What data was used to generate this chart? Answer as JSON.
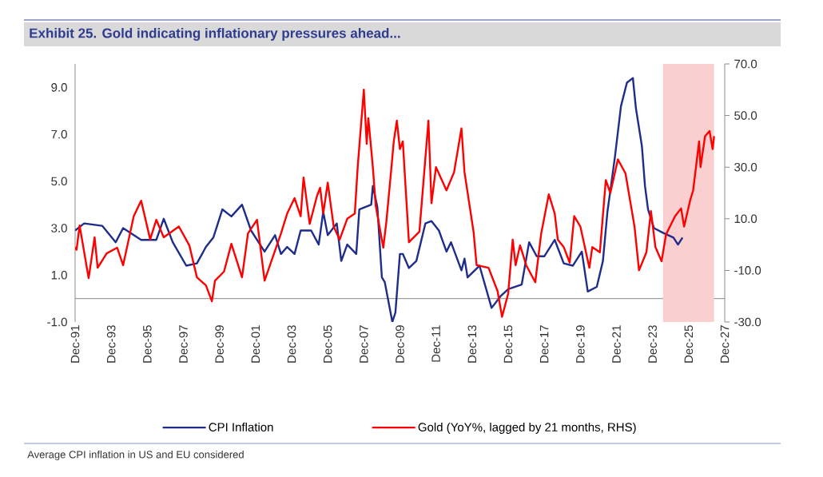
{
  "chart_data": {
    "type": "line",
    "title": "Exhibit 25. Gold indicating inflationary pressures ahead...",
    "annotations": [
      "Average CPI inflation in US and EU considered"
    ],
    "xlim": [
      "1991-12",
      "2027-12"
    ],
    "xticks": [
      {
        "value": "1991-12",
        "label": "Dec-91"
      },
      {
        "value": "1993-12",
        "label": "Dec-93"
      },
      {
        "value": "1995-12",
        "label": "Dec-95"
      },
      {
        "value": "1997-12",
        "label": "Dec-97"
      },
      {
        "value": "1999-12",
        "label": "Dec-99"
      },
      {
        "value": "2001-12",
        "label": "Dec-01"
      },
      {
        "value": "2003-12",
        "label": "Dec-03"
      },
      {
        "value": "2005-12",
        "label": "Dec-05"
      },
      {
        "value": "2007-12",
        "label": "Dec-07"
      },
      {
        "value": "2009-12",
        "label": "Dec-09"
      },
      {
        "value": "2011-12",
        "label": "Dec-11"
      },
      {
        "value": "2013-12",
        "label": "Dec-13"
      },
      {
        "value": "2015-12",
        "label": "Dec-15"
      },
      {
        "value": "2017-12",
        "label": "Dec-17"
      },
      {
        "value": "2019-12",
        "label": "Dec-19"
      },
      {
        "value": "2021-12",
        "label": "Dec-21"
      },
      {
        "value": "2023-12",
        "label": "Dec-23"
      },
      {
        "value": "2025-12",
        "label": "Dec-25"
      },
      {
        "value": "2027-12",
        "label": "Dec-27"
      }
    ],
    "ylim": [
      -1,
      10
    ],
    "yticks": [
      {
        "value": -1,
        "label": "-1.0"
      },
      {
        "value": 1,
        "label": "1.0"
      },
      {
        "value": 3,
        "label": "3.0"
      },
      {
        "value": 5,
        "label": "5.0"
      },
      {
        "value": 7,
        "label": "7.0"
      },
      {
        "value": 9,
        "label": "9.0"
      }
    ],
    "y2lim": [
      -30,
      70
    ],
    "y2ticks": [
      {
        "value": -30,
        "label": "-30.0"
      },
      {
        "value": -10,
        "label": "-10.0"
      },
      {
        "value": 10,
        "label": "10.0"
      },
      {
        "value": 30,
        "label": "30.0"
      },
      {
        "value": 50,
        "label": "50.0"
      },
      {
        "value": 70,
        "label": "70.0"
      }
    ],
    "legend": "bottom",
    "bands": [
      {
        "axis": "x",
        "from": "2024-07",
        "to": "2027-05",
        "color": "#f9cfcf"
      }
    ],
    "series": [
      {
        "name": "CPI Inflation",
        "color": "#1f2d8a",
        "x": [
          "1991-12",
          "1992-06",
          "1993-06",
          "1994-03",
          "1994-08",
          "1995-08",
          "1996-06",
          "1996-11",
          "1997-05",
          "1998-02",
          "1998-09",
          "1999-03",
          "1999-08",
          "2000-02",
          "2000-08",
          "2001-03",
          "2001-09",
          "2002-06",
          "2003-01",
          "2003-05",
          "2003-09",
          "2004-02",
          "2004-06",
          "2005-01",
          "2005-06",
          "2005-09",
          "2005-12",
          "2006-06",
          "2006-09",
          "2007-01",
          "2007-07",
          "2007-09",
          "2008-05",
          "2008-06",
          "2008-09",
          "2008-12",
          "2009-02",
          "2009-07",
          "2009-09",
          "2009-12",
          "2010-02",
          "2010-06",
          "2010-11",
          "2011-05",
          "2011-09",
          "2012-02",
          "2012-07",
          "2012-10",
          "2013-05",
          "2013-07",
          "2013-09",
          "2014-05",
          "2015-01",
          "2015-07",
          "2015-12",
          "2016-09",
          "2017-02",
          "2017-07",
          "2017-12",
          "2018-07",
          "2019-01",
          "2019-07",
          "2020-01",
          "2020-05",
          "2020-11",
          "2021-03",
          "2021-06",
          "2021-11",
          "2022-03",
          "2022-07",
          "2022-11",
          "2023-01",
          "2023-05",
          "2023-07",
          "2023-09",
          "2024-01",
          "2024-07",
          "2025-02",
          "2025-05",
          "2025-08"
        ],
        "values": [
          2.9,
          3.2,
          3.1,
          2.4,
          3.0,
          2.5,
          2.5,
          3.4,
          2.4,
          1.4,
          1.5,
          2.2,
          2.6,
          3.8,
          3.5,
          4.0,
          2.9,
          2.0,
          2.7,
          1.9,
          2.2,
          1.9,
          2.9,
          2.9,
          2.3,
          3.7,
          2.7,
          3.2,
          1.6,
          2.3,
          1.9,
          3.8,
          4.0,
          4.8,
          3.9,
          0.9,
          0.7,
          -1.0,
          -0.6,
          1.9,
          1.9,
          1.3,
          1.6,
          3.2,
          3.3,
          2.9,
          2.0,
          2.4,
          1.2,
          1.7,
          0.9,
          1.4,
          -0.4,
          0.1,
          0.4,
          0.6,
          2.4,
          1.8,
          1.8,
          2.5,
          1.5,
          1.4,
          2.0,
          0.3,
          0.5,
          1.6,
          3.7,
          6.0,
          8.2,
          9.2,
          9.4,
          8.1,
          6.5,
          4.8,
          3.8,
          3.0,
          2.8,
          2.6,
          2.3,
          2.6
        ]
      },
      {
        "name": "Gold (YoY%, lagged by 21 months, RHS)",
        "color": "#ff0000",
        "axis": "y2",
        "x": [
          "1991-12",
          "1992-01",
          "1992-03",
          "1992-09",
          "1993-01",
          "1993-03",
          "1993-09",
          "1994-04",
          "1994-08",
          "1995-03",
          "1995-08",
          "1996-02",
          "1996-06",
          "1996-11",
          "1997-09",
          "1998-04",
          "1998-09",
          "1999-03",
          "1999-07",
          "1999-09",
          "2000-03",
          "2000-08",
          "2001-03",
          "2001-07",
          "2002-01",
          "2002-06",
          "2003-05",
          "2003-09",
          "2004-02",
          "2004-06",
          "2004-08",
          "2004-12",
          "2005-05",
          "2005-07",
          "2005-09",
          "2005-12",
          "2006-04",
          "2006-08",
          "2007-01",
          "2007-06",
          "2007-08",
          "2007-12",
          "2008-02",
          "2008-03",
          "2008-06",
          "2008-08",
          "2009-01",
          "2009-03",
          "2009-06",
          "2009-08",
          "2009-10",
          "2009-12",
          "2010-02",
          "2010-06",
          "2011-01",
          "2011-07",
          "2011-09",
          "2011-12",
          "2012-07",
          "2012-12",
          "2013-05",
          "2013-07",
          "2014-01",
          "2014-03",
          "2014-11",
          "2015-05",
          "2015-08",
          "2015-12",
          "2016-03",
          "2016-05",
          "2016-08",
          "2016-12",
          "2017-06",
          "2017-10",
          "2018-03",
          "2018-07",
          "2018-09",
          "2019-01",
          "2019-05",
          "2019-08",
          "2019-12",
          "2020-06",
          "2020-08",
          "2021-01",
          "2021-05",
          "2021-08",
          "2022-01",
          "2022-06",
          "2022-12",
          "2023-03",
          "2023-08",
          "2023-11",
          "2024-02",
          "2024-06",
          "2024-09",
          "2025-03",
          "2025-07",
          "2025-09",
          "2026-01",
          "2026-03",
          "2026-07",
          "2026-08",
          "2026-11",
          "2027-02",
          "2027-04",
          "2027-05"
        ],
        "values": [
          -1,
          -2,
          7.4,
          -13,
          2.8,
          -9,
          -3.4,
          -1.2,
          -8,
          11,
          17,
          2,
          9.6,
          2.8,
          7,
          -0.3,
          -12.7,
          -15.8,
          -22,
          -14,
          -10.5,
          0.3,
          -12.7,
          4.3,
          9.6,
          -14,
          4.3,
          12,
          18,
          11,
          26,
          8,
          19,
          22,
          12,
          24,
          7,
          1.9,
          10,
          12,
          30,
          60,
          39,
          49,
          30,
          15,
          -1.2,
          9,
          27.6,
          40,
          48,
          37,
          40,
          0.9,
          5,
          48,
          16,
          30,
          21,
          28,
          45,
          28,
          5,
          -8,
          -9,
          -18,
          -28,
          -19,
          1.9,
          -8,
          -0.3,
          -8,
          -14.6,
          4.3,
          19.5,
          12,
          1.9,
          -1,
          -7,
          11,
          7,
          -9,
          -1,
          -3,
          25,
          20,
          33,
          27.6,
          7,
          -10,
          -3,
          13,
          -1,
          -6.5,
          4,
          11,
          14,
          7,
          17,
          21,
          40,
          30,
          42,
          44,
          37,
          42
        ]
      }
    ]
  }
}
